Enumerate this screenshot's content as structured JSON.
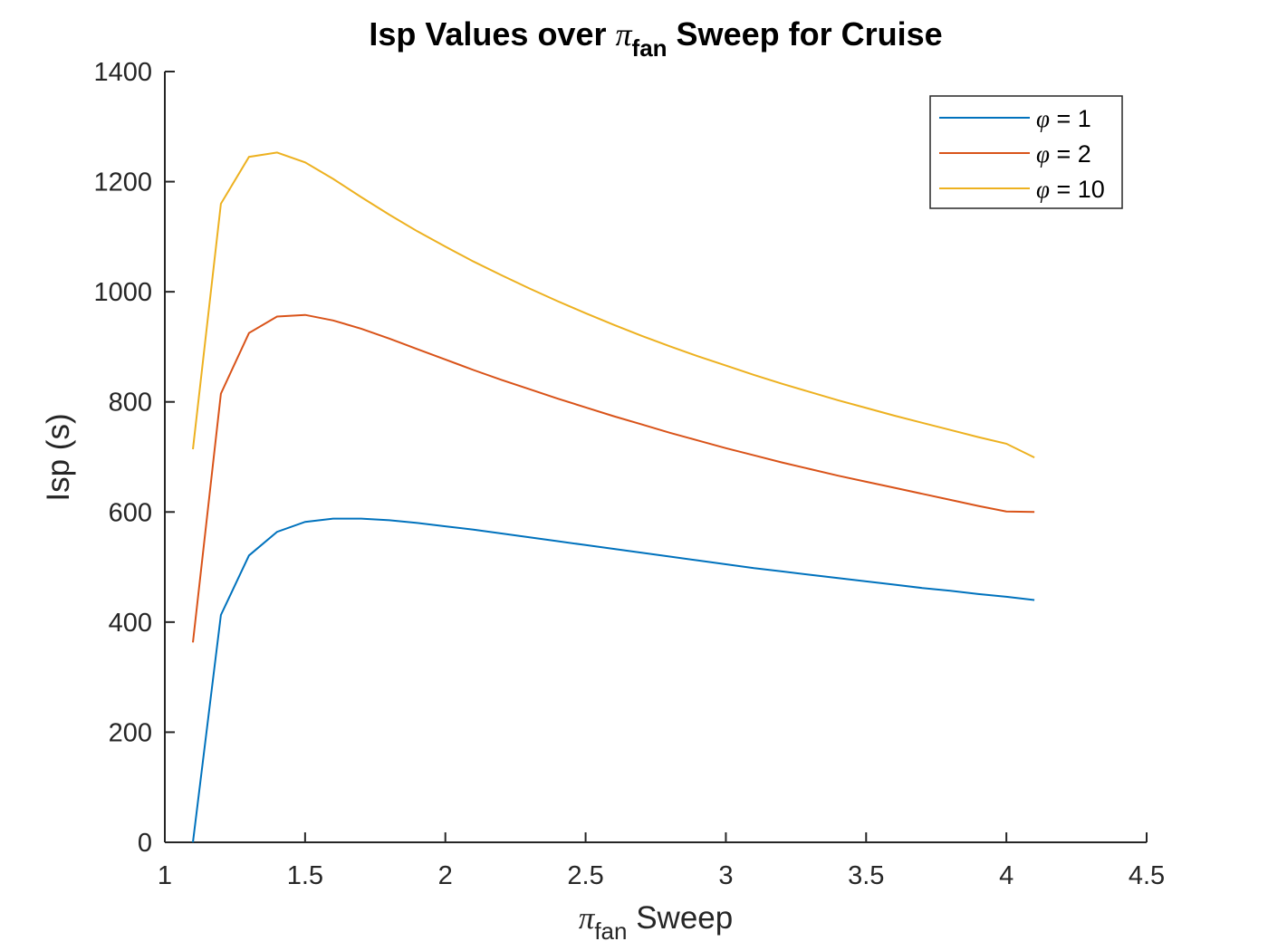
{
  "chart_data": {
    "type": "line",
    "title": {
      "prefix": "Isp Values over ",
      "symbol": "π",
      "subscript": "fan",
      "suffix": " Sweep for Cruise"
    },
    "xlabel": {
      "symbol": "π",
      "subscript": "fan",
      "suffix": " Sweep"
    },
    "ylabel": "Isp (s)",
    "xlim": [
      1,
      4.5
    ],
    "ylim": [
      0,
      1400
    ],
    "xticks": [
      "1",
      "1.5",
      "2",
      "2.5",
      "3",
      "3.5",
      "4",
      "4.5"
    ],
    "yticks": [
      "0",
      "200",
      "400",
      "600",
      "800",
      "1000",
      "1200",
      "1400"
    ],
    "grid": false,
    "legend_position": "top-right",
    "x": [
      1.1,
      1.2,
      1.3,
      1.4,
      1.5,
      1.6,
      1.7,
      1.8,
      1.9,
      2.0,
      2.1,
      2.2,
      2.3,
      2.4,
      2.5,
      2.6,
      2.7,
      2.8,
      2.9,
      3.0,
      3.1,
      3.2,
      3.3,
      3.4,
      3.5,
      3.6,
      3.7,
      3.8,
      3.9,
      4.0,
      4.1
    ],
    "series": [
      {
        "name": "φ = 1",
        "legend_symbol": "φ",
        "legend_value": " = 1",
        "color": "#0072BD",
        "values": [
          0,
          413,
          521,
          564,
          582,
          588,
          588,
          585,
          580,
          574,
          568,
          561,
          554,
          547,
          540,
          533,
          526,
          519,
          512,
          505,
          498,
          492,
          486,
          480,
          474,
          468,
          462,
          457,
          451,
          446,
          440
        ]
      },
      {
        "name": "φ = 2",
        "legend_symbol": "φ",
        "legend_value": " = 2",
        "color": "#D95319",
        "values": [
          363,
          815,
          925,
          955,
          958,
          948,
          933,
          915,
          896,
          877,
          858,
          840,
          823,
          806,
          790,
          774,
          759,
          744,
          730,
          716,
          703,
          690,
          678,
          666,
          655,
          644,
          633,
          622,
          611,
          601,
          600
        ]
      },
      {
        "name": "φ = 10",
        "legend_symbol": "φ",
        "legend_value": " = 10",
        "color": "#EDB120",
        "values": [
          714,
          1160,
          1245,
          1253,
          1235,
          1205,
          1172,
          1140,
          1110,
          1082,
          1055,
          1030,
          1006,
          983,
          961,
          940,
          920,
          901,
          883,
          866,
          849,
          833,
          818,
          803,
          789,
          775,
          762,
          749,
          736,
          724,
          699
        ]
      }
    ]
  }
}
